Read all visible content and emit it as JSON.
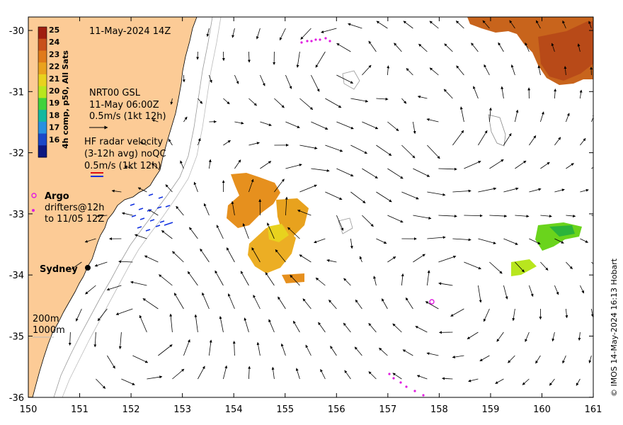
{
  "map": {
    "date_label": "11-May-2024 14Z",
    "colorbar": {
      "title": "4h comp, p50, All Sats",
      "ticks": [
        "25",
        "24",
        "23",
        "22",
        "21",
        "20",
        "19",
        "18",
        "17",
        "16"
      ],
      "colors": [
        "#a01e10",
        "#c8501a",
        "#e07a1a",
        "#eaa21e",
        "#e8d21e",
        "#b8e61e",
        "#40d23c",
        "#14b8a0",
        "#2890e0",
        "#1a48c8",
        "#0c1880"
      ]
    },
    "current_legend": {
      "source": "NRT00 GSL",
      "time": "11-May 06:00Z",
      "scale": "0.5m/s (1kt 12h)"
    },
    "hf_legend": {
      "title": "HF radar velocity",
      "subtitle": "(3-12h avg) noQC",
      "scale": "0.5m/s (1kt 12h)"
    },
    "argo_label": "Argo",
    "drifter_label_1": "drifters@12h",
    "drifter_label_2": "to 11/05 12Z",
    "city_label": "Sydney",
    "contour_200": "200m",
    "contour_1000": "1000m",
    "credit": "© IMOS 14-May-2024 16:13 Hobart",
    "x_ticks": [
      "150",
      "151",
      "152",
      "153",
      "154",
      "155",
      "156",
      "157",
      "158",
      "159",
      "160",
      "161"
    ],
    "y_ticks": [
      "-30",
      "-31",
      "-32",
      "-33",
      "-34",
      "-35",
      "-36"
    ],
    "colors": {
      "land": "#fccb96",
      "argo": "#e01ce0",
      "hf_red": "#e01010",
      "hf_blue": "#1030e0"
    }
  }
}
